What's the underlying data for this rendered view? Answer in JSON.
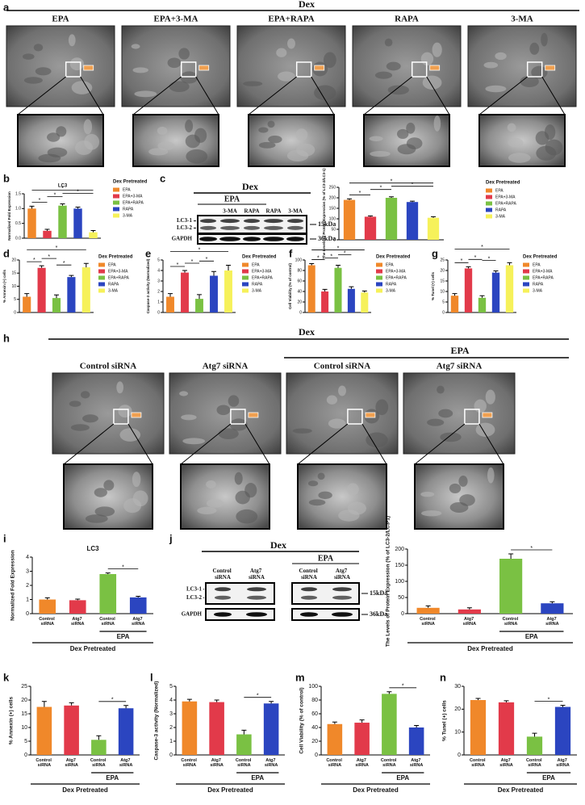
{
  "panel_letters": [
    "a",
    "b",
    "c",
    "d",
    "e",
    "f",
    "g",
    "h",
    "i",
    "j",
    "k",
    "l",
    "m",
    "n"
  ],
  "figure_a": {
    "header": "Dex",
    "columns": [
      "EPA",
      "EPA+3-MA",
      "EPA+RAPA",
      "RAPA",
      "3-MA"
    ]
  },
  "blot_c": {
    "header": "Dex",
    "group": "EPA",
    "lanes": [
      "3-MA",
      "RAPA",
      "RAPA",
      "3-MA"
    ],
    "rows": [
      "LC3-1",
      "LC3-2",
      "GAPDH"
    ],
    "markers": [
      "15kDa",
      "36kDa"
    ]
  },
  "figure_h": {
    "header": "Dex",
    "group": "EPA",
    "columns": [
      "Control siRNA",
      "Atg7 siRNA",
      "Control siRNA",
      "Atg7 siRNA"
    ]
  },
  "blot_j": {
    "header": "Dex",
    "group": "EPA",
    "lanes": [
      "Control siRNA",
      "Atg7 siRNA",
      "Control siRNA",
      "Atg7 siRNA"
    ],
    "rows": [
      "LC3-1",
      "LC3-2",
      "GAPDH"
    ],
    "markers": [
      "15kDa",
      "36kDa"
    ]
  },
  "chart_data": [
    {
      "type": "bar",
      "title": "LC3",
      "ylabel": "Normalized Fold Expression",
      "legend_title": "Dex Pretreated",
      "categories": [
        "EPA",
        "EPA+3-MA",
        "EPA+RAPA",
        "RAPA",
        "3-MA"
      ],
      "values": [
        1.0,
        0.25,
        1.1,
        1.0,
        0.2
      ],
      "errors": [
        0.08,
        0.05,
        0.06,
        0.05,
        0.06
      ],
      "colors": [
        "#f0882a",
        "#e23a4a",
        "#7ac143",
        "#2b45c0",
        "#f6f15a"
      ],
      "ylim": [
        0,
        1.5
      ],
      "yticks": [
        {
          "value": 0,
          "label": "0.0"
        },
        {
          "value": 0.5,
          "label": "0.5"
        },
        {
          "value": 1,
          "label": "1.0"
        },
        {
          "value": 1.5,
          "label": "1.5"
        }
      ],
      "significance": [
        {
          "label": "*",
          "pair": [
            0,
            1
          ]
        },
        {
          "label": "*",
          "pair": [
            1,
            2
          ]
        },
        {
          "label": "*",
          "pair": [
            2,
            4
          ]
        },
        {
          "label": "*",
          "pair": [
            0,
            4
          ]
        }
      ]
    },
    {
      "type": "bar",
      "ylabel": "The Levels of Protein Expression (% of LC3-2/LC3-1)",
      "legend_title": "Dex Pretreated",
      "categories": [
        "EPA",
        "EPA+3-MA",
        "EPA+RAPA",
        "RAPA",
        "3-MA"
      ],
      "values": [
        190,
        110,
        200,
        180,
        105
      ],
      "errors": [
        5,
        4,
        5,
        4,
        5
      ],
      "colors": [
        "#f0882a",
        "#e23a4a",
        "#7ac143",
        "#2b45c0",
        "#f6f15a"
      ],
      "ylim": [
        0,
        250
      ],
      "yticks": [
        0,
        50,
        100,
        150,
        200,
        250
      ],
      "significance": [
        {
          "label": "*",
          "pair": [
            0,
            1
          ]
        },
        {
          "label": "*",
          "pair": [
            1,
            2
          ]
        },
        {
          "label": "*",
          "pair": [
            2,
            4
          ]
        },
        {
          "label": "*",
          "pair": [
            0,
            4
          ]
        }
      ]
    },
    {
      "type": "bar",
      "ylabel": "% Annexin (+) cells",
      "legend_title": "Dex Pretreated",
      "categories": [
        "EPA",
        "EPA+3-MA",
        "EPA+RAPA",
        "RAPA",
        "3-MA"
      ],
      "values": [
        6,
        17,
        5.5,
        13.5,
        17.2
      ],
      "errors": [
        1.2,
        0.8,
        1.2,
        0.6,
        1.5
      ],
      "colors": [
        "#f0882a",
        "#e23a4a",
        "#7ac143",
        "#2b45c0",
        "#f6f15a"
      ],
      "ylim": [
        0,
        20
      ],
      "yticks": [
        0,
        5,
        10,
        15,
        20
      ],
      "significance": [
        {
          "label": "*",
          "pair": [
            0,
            1
          ]
        },
        {
          "label": "*",
          "pair": [
            1,
            2
          ]
        },
        {
          "label": "*",
          "pair": [
            2,
            3
          ]
        },
        {
          "label": "*",
          "pair": [
            0,
            4
          ]
        }
      ]
    },
    {
      "type": "bar",
      "ylabel": "Caspase-3 activity (Normalized)",
      "legend_title": "Dex Pretreated",
      "categories": [
        "EPA",
        "EPA+3-MA",
        "EPA+RAPA",
        "RAPA",
        "3-MA"
      ],
      "values": [
        1.5,
        3.8,
        1.3,
        3.5,
        4.0
      ],
      "errors": [
        0.3,
        0.2,
        0.4,
        0.4,
        0.5
      ],
      "colors": [
        "#f0882a",
        "#e23a4a",
        "#7ac143",
        "#2b45c0",
        "#f6f15a"
      ],
      "ylim": [
        0,
        5
      ],
      "yticks": [
        0,
        1,
        2,
        3,
        4,
        5
      ],
      "significance": [
        {
          "label": "*",
          "pair": [
            0,
            1
          ]
        },
        {
          "label": "*",
          "pair": [
            1,
            2
          ]
        },
        {
          "label": "*",
          "pair": [
            2,
            3
          ]
        },
        {
          "label": "*",
          "pair": [
            0,
            4
          ]
        }
      ]
    },
    {
      "type": "bar",
      "ylabel": "Cell Viability (% of control)",
      "legend_title": "Dex Pretreated",
      "categories": [
        "EPA",
        "EPA+3-MA",
        "EPA+RAPA",
        "RAPA",
        "3-MA"
      ],
      "values": [
        90,
        40,
        85,
        45,
        38
      ],
      "errors": [
        3,
        4,
        5,
        4,
        3
      ],
      "colors": [
        "#f0882a",
        "#e23a4a",
        "#7ac143",
        "#2b45c0",
        "#f6f15a"
      ],
      "ylim": [
        0,
        100
      ],
      "yticks": [
        0,
        20,
        40,
        60,
        80,
        100
      ],
      "significance": [
        {
          "label": "*",
          "pair": [
            0,
            1
          ]
        },
        {
          "label": "*",
          "pair": [
            1,
            2
          ]
        },
        {
          "label": "*",
          "pair": [
            2,
            3
          ]
        },
        {
          "label": "*",
          "pair": [
            0,
            4
          ]
        }
      ]
    },
    {
      "type": "bar",
      "ylabel": "% Tunel (+) cells",
      "legend_title": "Dex Pretreated",
      "categories": [
        "EPA",
        "EPA+3-MA",
        "EPA+RAPA",
        "RAPA",
        "3-MA"
      ],
      "values": [
        8,
        21,
        7,
        19,
        22.5
      ],
      "errors": [
        1,
        0.8,
        1,
        0.8,
        1.2
      ],
      "colors": [
        "#f0882a",
        "#e23a4a",
        "#7ac143",
        "#2b45c0",
        "#f6f15a"
      ],
      "ylim": [
        0,
        25
      ],
      "yticks": [
        0,
        5,
        10,
        15,
        20,
        25
      ],
      "significance": [
        {
          "label": "*",
          "pair": [
            0,
            1
          ]
        },
        {
          "label": "*",
          "pair": [
            1,
            2
          ]
        },
        {
          "label": "*",
          "pair": [
            2,
            3
          ]
        },
        {
          "label": "*",
          "pair": [
            0,
            4
          ]
        }
      ]
    },
    {
      "type": "bar",
      "title": "LC3",
      "ylabel": "Normalized Fold Expression",
      "group_label": "EPA",
      "xlabel": "Dex Pretreated",
      "categories": [
        "Control siRNA",
        "Atg7 siRNA",
        "Control siRNA",
        "Atg7 siRNA"
      ],
      "values": [
        1.0,
        0.95,
        2.8,
        1.15
      ],
      "errors": [
        0.12,
        0.08,
        0.08,
        0.08
      ],
      "colors": [
        "#f0882a",
        "#e23a4a",
        "#7ac143",
        "#2b45c0"
      ],
      "ylim": [
        0,
        4
      ],
      "yticks": [
        0,
        1,
        2,
        3,
        4
      ],
      "significance": [
        {
          "label": "*",
          "pair": [
            2,
            3
          ]
        }
      ]
    },
    {
      "type": "bar",
      "ylabel": "The Levels of Protein Expression (% of LC3-2/LC3-1)",
      "group_label": "EPA",
      "xlabel": "Dex Pretreated",
      "categories": [
        "Control siRNA",
        "Atg7 siRNA",
        "Control siRNA",
        "Atg7 siRNA"
      ],
      "values": [
        18,
        13,
        170,
        32
      ],
      "errors": [
        6,
        5,
        15,
        5
      ],
      "colors": [
        "#f0882a",
        "#e23a4a",
        "#7ac143",
        "#2b45c0"
      ],
      "ylim": [
        0,
        200
      ],
      "yticks": [
        0,
        50,
        100,
        150,
        200
      ],
      "significance": [
        {
          "label": "*",
          "pair": [
            2,
            3
          ]
        }
      ]
    },
    {
      "type": "bar",
      "ylabel": "% Annexin (+) cells",
      "group_label": "EPA",
      "xlabel": "Dex Pretreated",
      "categories": [
        "Control siRNA",
        "Atg7 siRNA",
        "Control siRNA",
        "Atg7 siRNA"
      ],
      "values": [
        17.5,
        18,
        5.5,
        17
      ],
      "errors": [
        2,
        1,
        1.5,
        1
      ],
      "colors": [
        "#f0882a",
        "#e23a4a",
        "#7ac143",
        "#2b45c0"
      ],
      "ylim": [
        0,
        25
      ],
      "yticks": [
        0,
        5,
        10,
        15,
        20,
        25
      ],
      "significance": [
        {
          "label": "*",
          "pair": [
            2,
            3
          ]
        }
      ]
    },
    {
      "type": "bar",
      "ylabel": "Caspase-3 activity (Normalized)",
      "group_label": "EPA",
      "xlabel": "Dex Pretreated",
      "categories": [
        "Control siRNA",
        "Atg7 siRNA",
        "Control siRNA",
        "Atg7 siRNA"
      ],
      "values": [
        3.9,
        3.85,
        1.5,
        3.75
      ],
      "errors": [
        0.15,
        0.15,
        0.3,
        0.15
      ],
      "colors": [
        "#f0882a",
        "#e23a4a",
        "#7ac143",
        "#2b45c0"
      ],
      "ylim": [
        0,
        5
      ],
      "yticks": [
        0,
        1,
        2,
        3,
        4,
        5
      ],
      "significance": [
        {
          "label": "*",
          "pair": [
            2,
            3
          ]
        }
      ]
    },
    {
      "type": "bar",
      "ylabel": "Cell Viability (% of control)",
      "group_label": "EPA",
      "xlabel": "Dex Pretreated",
      "categories": [
        "Control siRNA",
        "Atg7 siRNA",
        "Control siRNA",
        "Atg7 siRNA"
      ],
      "values": [
        45,
        47,
        89,
        40
      ],
      "errors": [
        3,
        4,
        3,
        3
      ],
      "colors": [
        "#f0882a",
        "#e23a4a",
        "#7ac143",
        "#2b45c0"
      ],
      "ylim": [
        0,
        100
      ],
      "yticks": [
        0,
        20,
        40,
        60,
        80,
        100
      ],
      "significance": [
        {
          "label": "*",
          "pair": [
            2,
            3
          ]
        }
      ]
    },
    {
      "type": "bar",
      "ylabel": "% Tunel (+) cells",
      "group_label": "EPA",
      "xlabel": "Dex Pretreated",
      "categories": [
        "Control siRNA",
        "Atg7 siRNA",
        "Control siRNA",
        "Atg7 siRNA"
      ],
      "values": [
        24,
        23,
        8,
        21
      ],
      "errors": [
        0.7,
        0.7,
        1.5,
        0.7
      ],
      "colors": [
        "#f0882a",
        "#e23a4a",
        "#7ac143",
        "#2b45c0"
      ],
      "ylim": [
        0,
        30
      ],
      "yticks": [
        0,
        10,
        20,
        30
      ],
      "significance": [
        {
          "label": "*",
          "pair": [
            2,
            3
          ]
        }
      ]
    }
  ]
}
